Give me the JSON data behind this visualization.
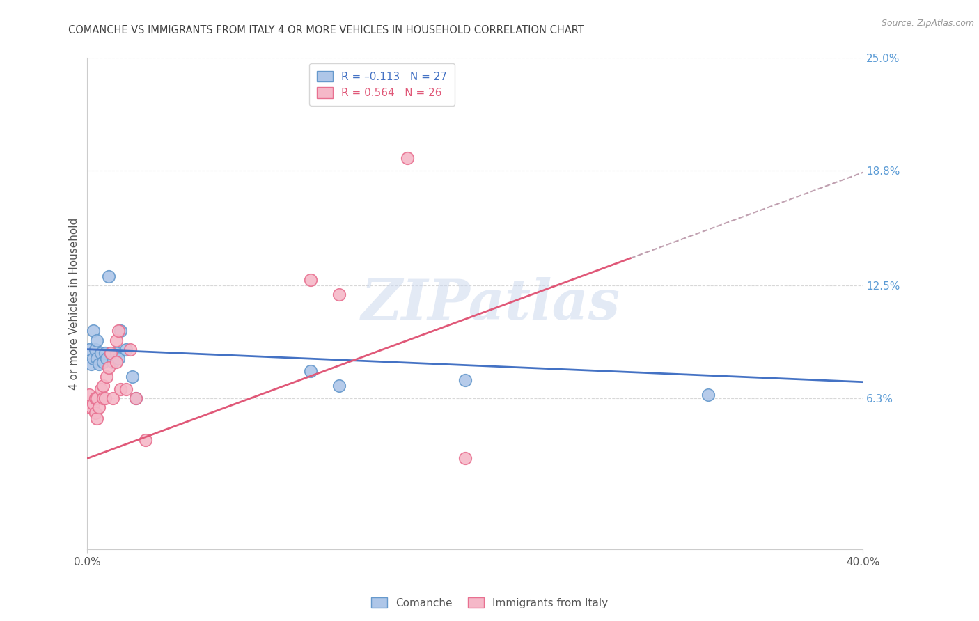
{
  "title": "COMANCHE VS IMMIGRANTS FROM ITALY 4 OR MORE VEHICLES IN HOUSEHOLD CORRELATION CHART",
  "source": "Source: ZipAtlas.com",
  "ylabel": "4 or more Vehicles in Household",
  "xlim": [
    0.0,
    0.4
  ],
  "ylim": [
    -0.02,
    0.25
  ],
  "ytick_labels_right": [
    "25.0%",
    "18.8%",
    "12.5%",
    "6.3%"
  ],
  "ytick_positions_right": [
    0.25,
    0.188,
    0.125,
    0.063
  ],
  "watermark": "ZIPatlas",
  "comanche_x": [
    0.001,
    0.002,
    0.003,
    0.003,
    0.004,
    0.005,
    0.005,
    0.006,
    0.007,
    0.008,
    0.009,
    0.01,
    0.011,
    0.012,
    0.013,
    0.015,
    0.016,
    0.017,
    0.02,
    0.023,
    0.025,
    0.115,
    0.13,
    0.195,
    0.32
  ],
  "comanche_y": [
    0.09,
    0.082,
    0.1,
    0.085,
    0.09,
    0.085,
    0.095,
    0.082,
    0.088,
    0.083,
    0.088,
    0.085,
    0.13,
    0.088,
    0.083,
    0.088,
    0.085,
    0.1,
    0.09,
    0.075,
    0.063,
    0.078,
    0.07,
    0.073,
    0.065
  ],
  "italy_x": [
    0.001,
    0.001,
    0.002,
    0.003,
    0.004,
    0.004,
    0.005,
    0.005,
    0.006,
    0.007,
    0.008,
    0.008,
    0.009,
    0.01,
    0.011,
    0.012,
    0.013,
    0.015,
    0.015,
    0.016,
    0.017,
    0.02,
    0.022,
    0.025,
    0.03,
    0.115,
    0.165,
    0.13,
    0.195
  ],
  "italy_y": [
    0.065,
    0.058,
    0.058,
    0.06,
    0.055,
    0.063,
    0.052,
    0.063,
    0.058,
    0.068,
    0.063,
    0.07,
    0.063,
    0.075,
    0.08,
    0.088,
    0.063,
    0.083,
    0.095,
    0.1,
    0.068,
    0.068,
    0.09,
    0.063,
    0.04,
    0.128,
    0.195,
    0.12,
    0.03
  ],
  "comanche_color": "#aec6e8",
  "italy_color": "#f5b8c8",
  "comanche_edge": "#6699cc",
  "italy_edge": "#e87090",
  "blue_line_color": "#4472c4",
  "pink_line_color": "#e05878",
  "dash_line_color": "#c0a0b0",
  "background_color": "#ffffff",
  "grid_color": "#d8d8d8",
  "title_color": "#404040",
  "axis_label_color": "#555555",
  "right_tick_color": "#5b9bd5",
  "blue_line_start_y": 0.09,
  "blue_line_end_y": 0.072,
  "pink_line_start_y": 0.03,
  "pink_line_end_y": 0.14
}
